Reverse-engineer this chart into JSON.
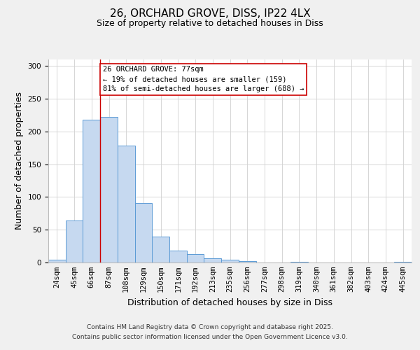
{
  "title": "26, ORCHARD GROVE, DISS, IP22 4LX",
  "subtitle": "Size of property relative to detached houses in Diss",
  "xlabel": "Distribution of detached houses by size in Diss",
  "ylabel": "Number of detached properties",
  "bar_labels": [
    "24sqm",
    "45sqm",
    "66sqm",
    "87sqm",
    "108sqm",
    "129sqm",
    "150sqm",
    "171sqm",
    "192sqm",
    "213sqm",
    "235sqm",
    "256sqm",
    "277sqm",
    "298sqm",
    "319sqm",
    "340sqm",
    "361sqm",
    "382sqm",
    "403sqm",
    "424sqm",
    "445sqm"
  ],
  "bar_values": [
    4,
    64,
    218,
    222,
    179,
    91,
    40,
    18,
    13,
    6,
    4,
    2,
    0,
    0,
    1,
    0,
    0,
    0,
    0,
    0,
    1
  ],
  "bar_color": "#c6d9f0",
  "bar_edge_color": "#5b9bd5",
  "ylim": [
    0,
    310
  ],
  "yticks": [
    0,
    50,
    100,
    150,
    200,
    250,
    300
  ],
  "annotation_title": "26 ORCHARD GROVE: 77sqm",
  "annotation_line1": "← 19% of detached houses are smaller (159)",
  "annotation_line2": "81% of semi-detached houses are larger (688) →",
  "vline_x_index": 2.5,
  "footnote1": "Contains HM Land Registry data © Crown copyright and database right 2025.",
  "footnote2": "Contains public sector information licensed under the Open Government Licence v3.0.",
  "background_color": "#f0f0f0",
  "plot_background": "#ffffff",
  "vline_color": "#cc0000",
  "annotation_box_facecolor": "#ffffff",
  "annotation_box_edgecolor": "#cc0000",
  "title_fontsize": 11,
  "subtitle_fontsize": 9,
  "axis_label_fontsize": 9,
  "tick_fontsize": 7.5,
  "annotation_fontsize": 7.5,
  "footnote_fontsize": 6.5,
  "grid_color": "#d0d0d0"
}
